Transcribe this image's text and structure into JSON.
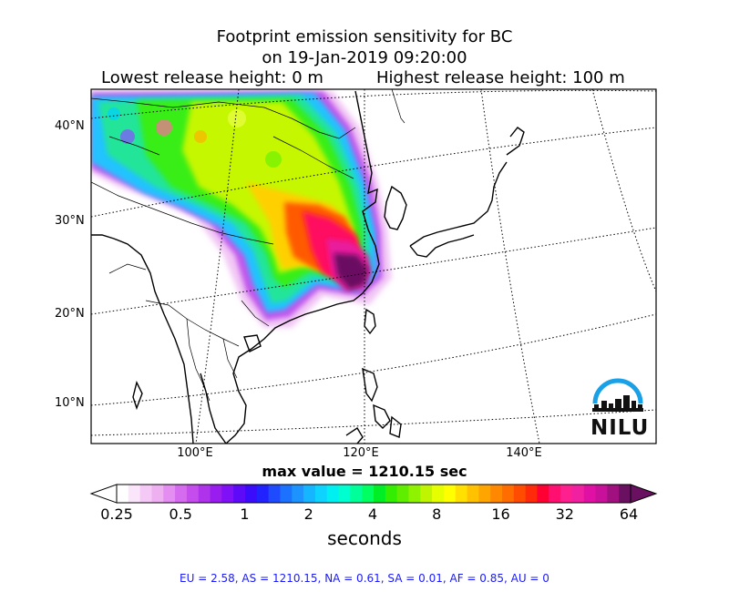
{
  "title": {
    "line1": "Footprint emission sensitivity for BC",
    "line2": "on 19-Jan-2019 09:20:00",
    "lowest_release": "Lowest release height: 0 m",
    "highest_release": "Highest release height: 100 m"
  },
  "map": {
    "lat_labels": [
      "40°N",
      "30°N",
      "20°N",
      "10°N"
    ],
    "lon_labels": [
      "100°E",
      "120°E",
      "140°E"
    ],
    "logo_text": "NILU",
    "colors": {
      "land": "#ffffff",
      "coast": "#000000",
      "border": "#000000",
      "grid": "#000000"
    }
  },
  "max_value": "max value = 1210.15 sec",
  "colorbar": {
    "tick_labels": [
      "0.25",
      "0.5",
      "1",
      "2",
      "4",
      "8",
      "16",
      "32",
      "64"
    ],
    "unit": "seconds",
    "colors": [
      "#ffffff",
      "#fbe5fb",
      "#f5c9f5",
      "#efb0f2",
      "#e38ef0",
      "#d56bef",
      "#c64ded",
      "#b033ec",
      "#9a1df0",
      "#8010f5",
      "#5c0af8",
      "#3a0cfb",
      "#2222ff",
      "#1f4bff",
      "#1c71ff",
      "#1c93ff",
      "#15b6ff",
      "#0fd3ff",
      "#00eff0",
      "#00ffd0",
      "#00ff99",
      "#00ff60",
      "#00ee25",
      "#33ee00",
      "#60ee00",
      "#8ff200",
      "#bff500",
      "#e6ff00",
      "#ffff00",
      "#ffe000",
      "#ffc100",
      "#ffa500",
      "#ff8800",
      "#ff6c00",
      "#ff4c00",
      "#ff2a0a",
      "#ff0033",
      "#ff1070",
      "#ff2090",
      "#f020a0",
      "#e010a5",
      "#c8109a",
      "#a0107e",
      "#6a1060"
    ]
  },
  "footer": "EU = 2.58,  AS = 1210.15,  NA = 0.61,  SA = 0.01,  AF = 0.85,  AU = 0"
}
